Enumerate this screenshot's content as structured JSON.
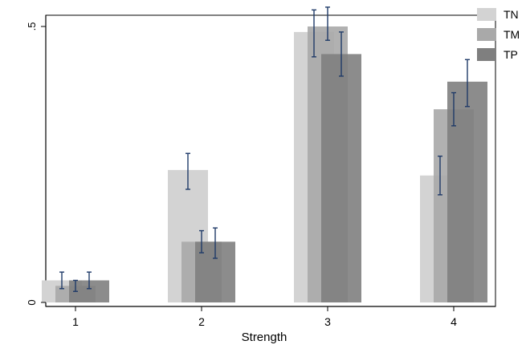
{
  "chart_data": {
    "type": "bar",
    "title": "",
    "xlabel": "Strength",
    "ylabel": "",
    "categories": [
      "1",
      "2",
      "3",
      "4"
    ],
    "ylim": [
      0,
      0.5
    ],
    "yticks": [
      {
        "value": 0,
        "label": "0"
      },
      {
        "value": 0.5,
        "label": ".5"
      }
    ],
    "grid": false,
    "legend_position": "top-right",
    "series": [
      {
        "name": "TN",
        "color": "#d3d3d3",
        "values": [
          0.04,
          0.24,
          0.49,
          0.23
        ],
        "ci_low": [
          0.025,
          0.205,
          0.445,
          0.195
        ],
        "ci_high": [
          0.055,
          0.27,
          0.53,
          0.265
        ]
      },
      {
        "name": "TM",
        "color": "#a9a9a9",
        "values": [
          0.03,
          0.11,
          0.5,
          0.35
        ],
        "ci_low": [
          0.02,
          0.09,
          0.475,
          0.32
        ],
        "ci_high": [
          0.04,
          0.13,
          0.535,
          0.38
        ]
      },
      {
        "name": "TP",
        "color": "#7f7f7f",
        "values": [
          0.04,
          0.11,
          0.45,
          0.4
        ],
        "ci_low": [
          0.025,
          0.08,
          0.41,
          0.355
        ],
        "ci_high": [
          0.055,
          0.135,
          0.49,
          0.44
        ]
      }
    ]
  }
}
